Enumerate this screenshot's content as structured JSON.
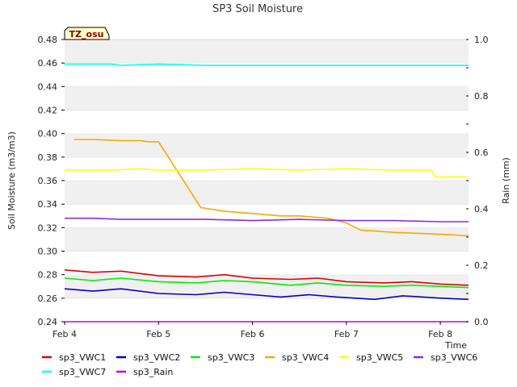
{
  "chart_data": {
    "type": "line",
    "title": "SP3 Soil Moisture",
    "ylabel": "Soil Moisture (m3/m3)",
    "y2label": "Rain (mm)",
    "xlabel": "Time",
    "badge": "TZ_osu",
    "ylim": [
      0.24,
      0.48
    ],
    "y2lim": [
      0.0,
      1.0
    ],
    "xlim": [
      0,
      4.3
    ],
    "yticks": [
      0.24,
      0.26,
      0.28,
      0.3,
      0.32,
      0.34,
      0.36,
      0.38,
      0.4,
      0.42,
      0.44,
      0.46,
      0.48
    ],
    "ytick_labels": [
      "0.24",
      "0.26",
      "0.28",
      "0.30",
      "0.32",
      "0.34",
      "0.36",
      "0.38",
      "0.40",
      "0.42",
      "0.44",
      "0.46",
      "0.48"
    ],
    "y2ticks": [
      0.0,
      0.2,
      0.4,
      0.6,
      0.8,
      1.0
    ],
    "y2tick_labels": [
      "0.0",
      "0.2",
      "0.4",
      "0.6",
      "0.8",
      "1.0"
    ],
    "xticks": [
      0,
      1,
      2,
      3,
      4
    ],
    "xtick_labels": [
      "Feb 4",
      "Feb 5",
      "Feb 6",
      "Feb 7",
      "Feb 8"
    ],
    "grid": "horizontal bands",
    "legend_placement": "bottom",
    "series": [
      {
        "name": "sp3_VWC1",
        "color": "#dd0000",
        "axis": "left",
        "x": [
          0.0,
          0.3,
          0.6,
          1.0,
          1.4,
          1.7,
          2.0,
          2.4,
          2.7,
          3.0,
          3.4,
          3.7,
          4.0,
          4.3
        ],
        "y": [
          0.284,
          0.282,
          0.283,
          0.279,
          0.278,
          0.28,
          0.277,
          0.276,
          0.277,
          0.274,
          0.273,
          0.274,
          0.272,
          0.271
        ]
      },
      {
        "name": "sp3_VWC2",
        "color": "#0000cc",
        "axis": "left",
        "x": [
          0.0,
          0.3,
          0.6,
          1.0,
          1.4,
          1.7,
          2.0,
          2.3,
          2.6,
          2.9,
          3.3,
          3.6,
          4.0,
          4.3
        ],
        "y": [
          0.268,
          0.266,
          0.268,
          0.264,
          0.263,
          0.265,
          0.263,
          0.261,
          0.263,
          0.261,
          0.259,
          0.262,
          0.26,
          0.259
        ]
      },
      {
        "name": "sp3_VWC3",
        "color": "#00ee00",
        "axis": "left",
        "x": [
          0.0,
          0.3,
          0.6,
          1.0,
          1.4,
          1.7,
          2.0,
          2.4,
          2.7,
          3.0,
          3.4,
          3.7,
          4.0,
          4.3
        ],
        "y": [
          0.277,
          0.275,
          0.277,
          0.274,
          0.273,
          0.275,
          0.274,
          0.271,
          0.273,
          0.271,
          0.27,
          0.271,
          0.27,
          0.269
        ]
      },
      {
        "name": "sp3_VWC4",
        "color": "#ffa500",
        "axis": "left",
        "x": [
          0.1,
          0.3,
          0.6,
          0.8,
          0.9,
          1.0,
          1.45,
          1.7,
          2.0,
          2.3,
          2.5,
          2.8,
          3.0,
          3.15,
          3.5,
          3.8,
          4.1,
          4.3
        ],
        "y": [
          0.395,
          0.395,
          0.394,
          0.394,
          0.393,
          0.393,
          0.337,
          0.334,
          0.332,
          0.33,
          0.33,
          0.328,
          0.324,
          0.318,
          0.316,
          0.315,
          0.314,
          0.313
        ]
      },
      {
        "name": "sp3_VWC5",
        "color": "#ffff00",
        "axis": "left",
        "x": [
          0.0,
          0.5,
          0.8,
          1.0,
          1.5,
          2.0,
          2.5,
          3.0,
          3.5,
          3.9,
          3.95,
          4.3
        ],
        "y": [
          0.369,
          0.369,
          0.37,
          0.369,
          0.369,
          0.37,
          0.369,
          0.37,
          0.369,
          0.369,
          0.363,
          0.363
        ]
      },
      {
        "name": "sp3_VWC6",
        "color": "#8a2be2",
        "axis": "left",
        "x": [
          0.0,
          0.3,
          0.6,
          1.0,
          1.5,
          2.0,
          2.5,
          3.0,
          3.5,
          4.0,
          4.3
        ],
        "y": [
          0.328,
          0.328,
          0.327,
          0.327,
          0.327,
          0.326,
          0.327,
          0.326,
          0.326,
          0.325,
          0.325
        ]
      },
      {
        "name": "sp3_VWC7",
        "color": "#00ffff",
        "axis": "left",
        "x": [
          0.0,
          0.5,
          0.6,
          1.0,
          1.5,
          2.0,
          2.5,
          3.0,
          3.5,
          4.0,
          4.3
        ],
        "y": [
          0.459,
          0.459,
          0.458,
          0.459,
          0.458,
          0.458,
          0.458,
          0.458,
          0.458,
          0.458,
          0.458
        ]
      },
      {
        "name": "sp3_Rain",
        "color": "#cc00cc",
        "axis": "right",
        "x": [
          0.0,
          4.3
        ],
        "y": [
          0.0,
          0.0
        ]
      }
    ]
  }
}
